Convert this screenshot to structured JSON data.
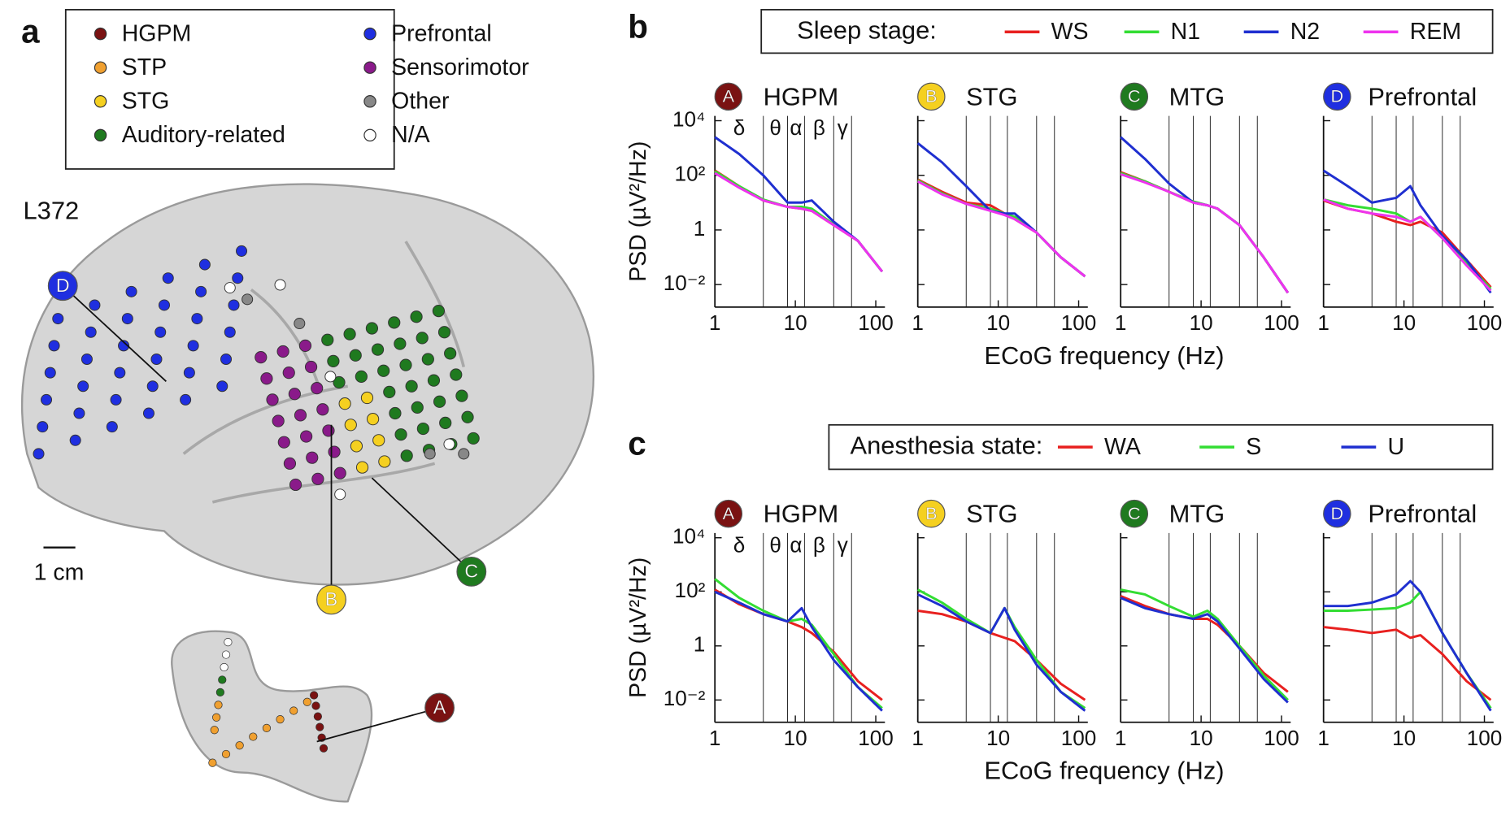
{
  "panel_a": {
    "label": "a",
    "subject": "L372",
    "scale_bar": "1 cm",
    "legend": [
      {
        "label": "HGPM",
        "color": "#7a1212"
      },
      {
        "label": "STP",
        "color": "#f0a030"
      },
      {
        "label": "STG",
        "color": "#f5d020"
      },
      {
        "label": "Auditory-related",
        "color": "#1f7a1f"
      },
      {
        "label": "Prefrontal",
        "color": "#1f2fe0"
      },
      {
        "label": "Sensorimotor",
        "color": "#8a1a8a"
      },
      {
        "label": "Other",
        "color": "#888888"
      },
      {
        "label": "N/A",
        "color": "#ffffff"
      }
    ],
    "callouts": [
      {
        "label": "A",
        "color": "#7a1212"
      },
      {
        "label": "B",
        "color": "#f5d020"
      },
      {
        "label": "C",
        "color": "#1f7a1f"
      },
      {
        "label": "D",
        "color": "#1f2fe0"
      }
    ]
  },
  "panel_b": {
    "label": "b",
    "legend_title": "Sleep stage:",
    "ylabel": "PSD (µV²/Hz)",
    "xlabel": "ECoG frequency (Hz)",
    "bands": [
      4,
      8,
      13,
      30,
      50
    ],
    "band_labels": [
      "δ",
      "θ",
      "α",
      "β",
      "γ"
    ]
  },
  "panel_c": {
    "label": "c",
    "legend_title": "Anesthesia state:",
    "ylabel": "PSD (µV²/Hz)",
    "xlabel": "ECoG frequency (Hz)",
    "bands": [
      4,
      8,
      13,
      30,
      50
    ],
    "band_labels": [
      "δ",
      "θ",
      "α",
      "β",
      "γ"
    ]
  },
  "chart_data": [
    {
      "type": "line",
      "title": "HGPM",
      "marker": "A",
      "marker_color": "#7a1212",
      "x": [
        1,
        2,
        4,
        8,
        12,
        16,
        30,
        60,
        120
      ],
      "xlim": [
        1,
        130
      ],
      "ylim": [
        0.0015,
        15000
      ],
      "xscale": "log",
      "yscale": "log",
      "xticks": [
        1,
        10,
        100
      ],
      "yticks": [
        {
          "value": 10000,
          "label": "10⁴"
        },
        {
          "value": 100,
          "label": "10²"
        },
        1,
        {
          "value": 0.01,
          "label": "10⁻²"
        }
      ],
      "series": [
        {
          "name": "WS",
          "color": "#e8201f",
          "values": [
            150,
            40,
            12,
            7,
            6,
            5,
            1.5,
            0.4,
            0.03
          ]
        },
        {
          "name": "N1",
          "color": "#33dd33",
          "values": [
            140,
            40,
            13,
            7,
            7,
            6,
            1.6,
            0.4,
            0.03
          ]
        },
        {
          "name": "N2",
          "color": "#1f2fd0",
          "values": [
            2500,
            600,
            100,
            10,
            10,
            12,
            2,
            0.4,
            0.03
          ]
        },
        {
          "name": "REM",
          "color": "#ee33ee",
          "values": [
            120,
            35,
            12,
            7,
            6,
            5,
            1.5,
            0.4,
            0.03
          ]
        }
      ]
    },
    {
      "type": "line",
      "title": "STG",
      "marker": "B",
      "marker_color": "#f5d020",
      "x": [
        1,
        2,
        4,
        8,
        12,
        16,
        30,
        60,
        120
      ],
      "xlim": [
        1,
        130
      ],
      "ylim": [
        0.0015,
        15000
      ],
      "xscale": "log",
      "yscale": "log",
      "xticks": [
        1,
        10,
        100
      ],
      "yticks": [
        {
          "value": 10000,
          "label": "10⁴"
        },
        {
          "value": 100,
          "label": "10²"
        },
        1,
        {
          "value": 0.01,
          "label": "10⁻²"
        }
      ],
      "series": [
        {
          "name": "WS",
          "color": "#e8201f",
          "values": [
            70,
            25,
            10,
            8,
            4,
            2.5,
            0.8,
            0.1,
            0.02
          ]
        },
        {
          "name": "N1",
          "color": "#33dd33",
          "values": [
            65,
            22,
            9,
            6,
            4,
            3,
            0.8,
            0.1,
            0.02
          ]
        },
        {
          "name": "N2",
          "color": "#1f2fd0",
          "values": [
            1500,
            300,
            40,
            5,
            4,
            4,
            0.8,
            0.1,
            0.02
          ]
        },
        {
          "name": "REM",
          "color": "#ee33ee",
          "values": [
            60,
            20,
            9,
            5,
            3.5,
            2.5,
            0.8,
            0.1,
            0.02
          ]
        }
      ]
    },
    {
      "type": "line",
      "title": "MTG",
      "marker": "C",
      "marker_color": "#1f7a1f",
      "x": [
        1,
        2,
        4,
        8,
        12,
        16,
        30,
        60,
        120
      ],
      "xlim": [
        1,
        130
      ],
      "ylim": [
        0.0015,
        15000
      ],
      "xscale": "log",
      "yscale": "log",
      "xticks": [
        1,
        10,
        100
      ],
      "yticks": [
        {
          "value": 10000,
          "label": "10⁴"
        },
        {
          "value": 100,
          "label": "10²"
        },
        1,
        {
          "value": 0.01,
          "label": "10⁻²"
        }
      ],
      "series": [
        {
          "name": "WS",
          "color": "#e8201f",
          "values": [
            130,
            60,
            25,
            10,
            8,
            6,
            1.5,
            0.1,
            0.005
          ]
        },
        {
          "name": "N1",
          "color": "#33dd33",
          "values": [
            120,
            60,
            25,
            11,
            8,
            6,
            1.5,
            0.1,
            0.005
          ]
        },
        {
          "name": "N2",
          "color": "#1f2fd0",
          "values": [
            2500,
            400,
            50,
            10,
            8,
            6,
            1.5,
            0.1,
            0.005
          ]
        },
        {
          "name": "REM",
          "color": "#ee33ee",
          "values": [
            110,
            55,
            25,
            10,
            8,
            6,
            1.5,
            0.1,
            0.005
          ]
        }
      ]
    },
    {
      "type": "line",
      "title": "Prefrontal",
      "marker": "D",
      "marker_color": "#1f2fe0",
      "x": [
        1,
        2,
        4,
        8,
        12,
        16,
        30,
        60,
        120
      ],
      "xlim": [
        1,
        130
      ],
      "ylim": [
        0.0015,
        15000
      ],
      "xscale": "log",
      "yscale": "log",
      "xticks": [
        1,
        10,
        100
      ],
      "yticks": [
        {
          "value": 10000,
          "label": "10⁴"
        },
        {
          "value": 100,
          "label": "10²"
        },
        1,
        {
          "value": 0.01,
          "label": "10⁻²"
        }
      ],
      "series": [
        {
          "name": "WS",
          "color": "#e8201f",
          "values": [
            12,
            6,
            4,
            2,
            1.5,
            2,
            0.8,
            0.08,
            0.008
          ]
        },
        {
          "name": "N1",
          "color": "#33dd33",
          "values": [
            13,
            8,
            6,
            4,
            2,
            3,
            0.5,
            0.06,
            0.007
          ]
        },
        {
          "name": "N2",
          "color": "#1f2fd0",
          "values": [
            150,
            40,
            10,
            15,
            40,
            8,
            0.6,
            0.08,
            0.005
          ]
        },
        {
          "name": "REM",
          "color": "#ee33ee",
          "values": [
            13,
            6,
            4,
            3,
            2,
            3,
            0.5,
            0.05,
            0.006
          ]
        }
      ]
    },
    {
      "type": "line",
      "title": "HGPM",
      "marker": "A",
      "marker_color": "#7a1212",
      "x": [
        1,
        2,
        4,
        8,
        12,
        16,
        30,
        60,
        120
      ],
      "xlim": [
        1,
        130
      ],
      "ylim": [
        0.0015,
        15000
      ],
      "xscale": "log",
      "yscale": "log",
      "xticks": [
        1,
        10,
        100
      ],
      "yticks": [
        {
          "value": 10000,
          "label": "10⁴"
        },
        {
          "value": 100,
          "label": "10²"
        },
        1,
        {
          "value": 0.01,
          "label": "10⁻²"
        }
      ],
      "series": [
        {
          "name": "WA",
          "color": "#e8201f",
          "values": [
            120,
            35,
            15,
            8,
            5,
            3,
            0.6,
            0.05,
            0.01
          ]
        },
        {
          "name": "S",
          "color": "#33dd33",
          "values": [
            300,
            60,
            20,
            8,
            10,
            6,
            0.5,
            0.03,
            0.005
          ]
        },
        {
          "name": "U",
          "color": "#1f2fd0",
          "values": [
            100,
            40,
            15,
            8,
            25,
            5,
            0.3,
            0.03,
            0.004
          ]
        }
      ]
    },
    {
      "type": "line",
      "title": "STG",
      "marker": "B",
      "marker_color": "#f5d020",
      "x": [
        1,
        2,
        4,
        8,
        12,
        16,
        30,
        60,
        120
      ],
      "xlim": [
        1,
        130
      ],
      "ylim": [
        0.0015,
        15000
      ],
      "xscale": "log",
      "yscale": "log",
      "xticks": [
        1,
        10,
        100
      ],
      "yticks": [
        {
          "value": 10000,
          "label": "10⁴"
        },
        {
          "value": 100,
          "label": "10²"
        },
        1,
        {
          "value": 0.01,
          "label": "10⁻²"
        }
      ],
      "series": [
        {
          "name": "WA",
          "color": "#e8201f",
          "values": [
            20,
            15,
            8,
            3,
            2,
            1.5,
            0.3,
            0.04,
            0.01
          ]
        },
        {
          "name": "S",
          "color": "#33dd33",
          "values": [
            120,
            40,
            10,
            3,
            25,
            5,
            0.3,
            0.02,
            0.005
          ]
        },
        {
          "name": "U",
          "color": "#1f2fd0",
          "values": [
            80,
            30,
            8,
            3,
            25,
            4,
            0.2,
            0.02,
            0.004
          ]
        }
      ]
    },
    {
      "type": "line",
      "title": "MTG",
      "marker": "C",
      "marker_color": "#1f7a1f",
      "x": [
        1,
        2,
        4,
        8,
        12,
        16,
        30,
        60,
        120
      ],
      "xlim": [
        1,
        130
      ],
      "ylim": [
        0.0015,
        15000
      ],
      "xscale": "log",
      "yscale": "log",
      "xticks": [
        1,
        10,
        100
      ],
      "yticks": [
        {
          "value": 10000,
          "label": "10⁴"
        },
        {
          "value": 100,
          "label": "10²"
        },
        1,
        {
          "value": 0.01,
          "label": "10⁻²"
        }
      ],
      "series": [
        {
          "name": "WA",
          "color": "#e8201f",
          "values": [
            70,
            30,
            15,
            10,
            10,
            6,
            1,
            0.1,
            0.02
          ]
        },
        {
          "name": "S",
          "color": "#33dd33",
          "values": [
            120,
            80,
            30,
            12,
            20,
            10,
            1,
            0.08,
            0.01
          ]
        },
        {
          "name": "U",
          "color": "#1f2fd0",
          "values": [
            60,
            25,
            15,
            10,
            15,
            8,
            0.8,
            0.06,
            0.008
          ]
        }
      ]
    },
    {
      "type": "line",
      "title": "Prefrontal",
      "marker": "D",
      "marker_color": "#1f2fe0",
      "x": [
        1,
        2,
        4,
        8,
        12,
        16,
        30,
        60,
        120
      ],
      "xlim": [
        1,
        130
      ],
      "ylim": [
        0.0015,
        15000
      ],
      "xscale": "log",
      "yscale": "log",
      "xticks": [
        1,
        10,
        100
      ],
      "yticks": [
        {
          "value": 10000,
          "label": "10⁴"
        },
        {
          "value": 100,
          "label": "10²"
        },
        1,
        {
          "value": 0.01,
          "label": "10⁻²"
        }
      ],
      "series": [
        {
          "name": "WA",
          "color": "#e8201f",
          "values": [
            5,
            4,
            3,
            4,
            2,
            2.5,
            0.5,
            0.05,
            0.01
          ]
        },
        {
          "name": "S",
          "color": "#33dd33",
          "values": [
            20,
            20,
            22,
            25,
            40,
            100,
            3,
            0.1,
            0.005
          ]
        },
        {
          "name": "U",
          "color": "#1f2fd0",
          "values": [
            30,
            30,
            40,
            80,
            250,
            100,
            3,
            0.1,
            0.004
          ]
        }
      ]
    }
  ]
}
